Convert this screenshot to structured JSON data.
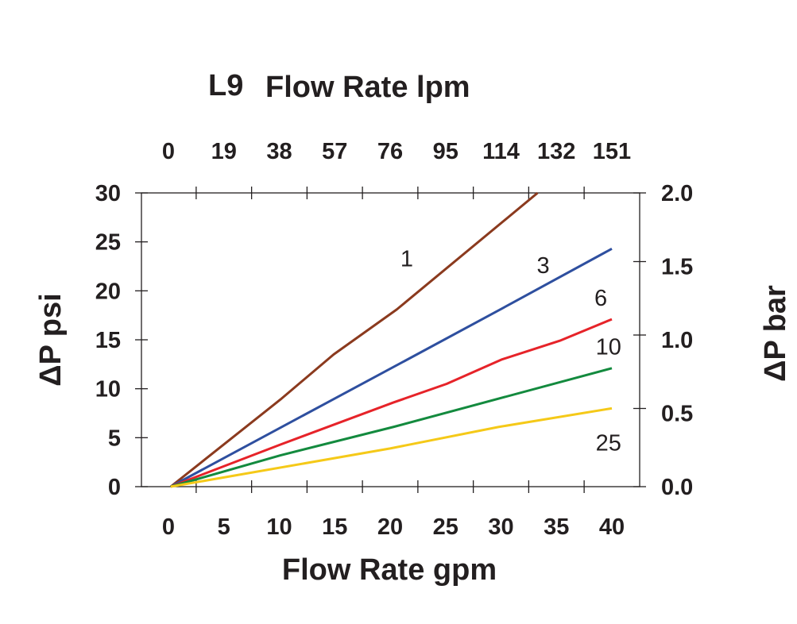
{
  "chart_data": {
    "type": "line",
    "title": "L9",
    "top_axis": {
      "label": "Flow Rate lpm",
      "tick_labels": [
        "0",
        "19",
        "38",
        "57",
        "76",
        "95",
        "114",
        "132",
        "151"
      ]
    },
    "xlabel": "Flow Rate gpm",
    "ylabel": "ΔP psi",
    "y2label": "ΔP bar",
    "xlim": [
      0,
      40
    ],
    "ylim": [
      0,
      30
    ],
    "y2lim": [
      0,
      2.0
    ],
    "x_ticks": [
      0,
      5,
      10,
      15,
      20,
      25,
      30,
      35,
      40
    ],
    "x_tick_labels": [
      "0",
      "5",
      "10",
      "15",
      "20",
      "25",
      "30",
      "35",
      "40"
    ],
    "y_ticks": [
      0,
      5,
      10,
      15,
      20,
      25,
      30
    ],
    "y_tick_labels": [
      "0",
      "5",
      "10",
      "15",
      "20",
      "25",
      "30"
    ],
    "y2_ticks": [
      0,
      0.5,
      1.0,
      1.5,
      2.0
    ],
    "y2_tick_labels": [
      "0.0",
      "0.5",
      "1.0",
      "1.5",
      "2.0"
    ],
    "grid": false,
    "series": [
      {
        "name": "1",
        "color": "#8b3a1e",
        "label_at": [
          21.5,
          22.5
        ],
        "x": [
          0.2,
          10.1,
          14.9,
          20.6,
          33.3
        ],
        "y": [
          0,
          8.9,
          13.5,
          18.1,
          30
        ]
      },
      {
        "name": "3",
        "color": "#2e4f9f",
        "label_at": [
          33.8,
          21.8
        ],
        "x": [
          0.2,
          22.4,
          30.1,
          40
        ],
        "y": [
          0,
          13.5,
          18.2,
          24.3
        ]
      },
      {
        "name": "6",
        "color": "#e62329",
        "label_at": [
          39.0,
          18.5
        ],
        "x": [
          0.2,
          10.1,
          20.3,
          25.1,
          30.1,
          35.3,
          40
        ],
        "y": [
          0,
          4.3,
          8.6,
          10.5,
          13.0,
          14.9,
          17.1
        ]
      },
      {
        "name": "10",
        "color": "#138a3e",
        "label_at": [
          39.7,
          13.5
        ],
        "x": [
          0.2,
          10.1,
          20.3,
          40
        ],
        "y": [
          0,
          3.2,
          6.1,
          12.1
        ]
      },
      {
        "name": "25",
        "color": "#f5c918",
        "label_at": [
          39.7,
          3.7
        ],
        "x": [
          0.2,
          20.0,
          29.8,
          40
        ],
        "y": [
          0,
          3.9,
          6.1,
          8.0
        ]
      }
    ]
  }
}
